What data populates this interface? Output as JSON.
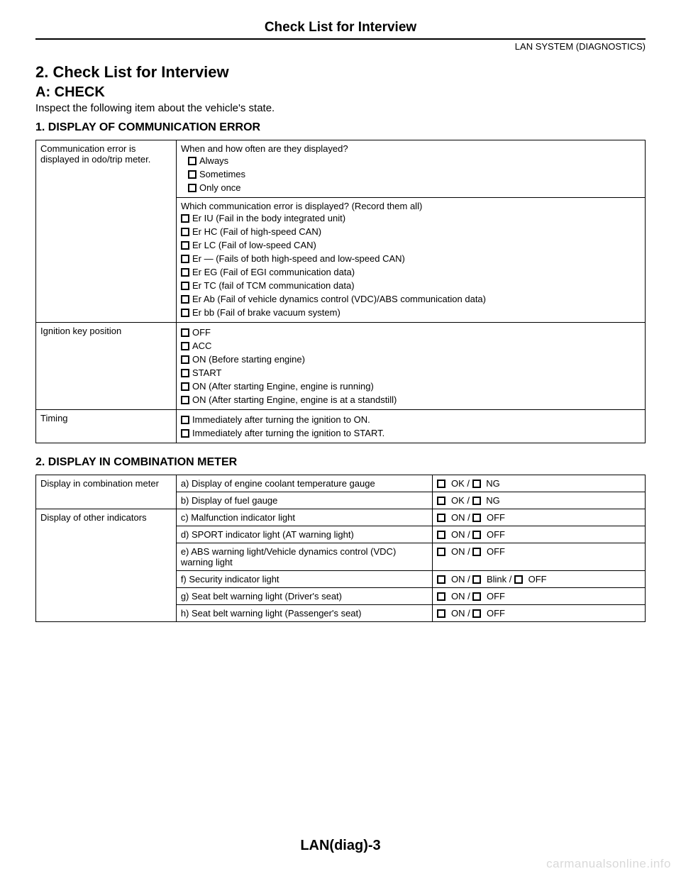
{
  "header": {
    "title": "Check List for Interview",
    "system": "LAN SYSTEM (DIAGNOSTICS)"
  },
  "section": {
    "num_title": "2.  Check List for Interview",
    "sub_a": "A:  CHECK",
    "intro": "Inspect the following item about the vehicle's state."
  },
  "part1": {
    "heading": "1.  DISPLAY OF COMMUNICATION ERROR",
    "row1_label": "Communication error is displayed in odo/trip meter.",
    "q1": "When and how often are they displayed?",
    "q1_opts": [
      "Always",
      "Sometimes",
      "Only once"
    ],
    "q2": "Which communication error is displayed? (Record them all)",
    "q2_opts": [
      "Er IU (Fail in the body integrated unit)",
      "Er HC (Fail of high-speed CAN)",
      "Er LC (Fail of low-speed CAN)",
      "Er — (Fails of both high-speed and low-speed CAN)",
      "Er EG (Fail of EGI communication data)",
      "Er TC (fail of TCM communication data)",
      "Er Ab (Fail of vehicle dynamics control (VDC)/ABS communication data)",
      "Er bb (Fail of brake vacuum system)"
    ],
    "row2_label": "Ignition key position",
    "row2_opts": [
      "OFF",
      "ACC",
      "ON (Before starting engine)",
      "START",
      "ON (After starting Engine, engine is running)",
      "ON (After starting Engine, engine is at a standstill)"
    ],
    "row3_label": "Timing",
    "row3_opts": [
      "Immediately after turning the ignition to ON.",
      "Immediately after turning the ignition to START."
    ]
  },
  "part2": {
    "heading": "2.  DISPLAY IN COMBINATION METER",
    "group1_label": "Display in combination meter",
    "group2_label": "Display of other indicators",
    "rows": [
      {
        "desc": "a) Display of engine coolant temperature gauge",
        "opts": [
          "OK",
          "NG"
        ]
      },
      {
        "desc": "b) Display of fuel gauge",
        "opts": [
          "OK",
          "NG"
        ]
      },
      {
        "desc": "c) Malfunction indicator light",
        "opts": [
          "ON",
          "OFF"
        ]
      },
      {
        "desc": "d) SPORT indicator light (AT warning light)",
        "opts": [
          "ON",
          "OFF"
        ]
      },
      {
        "desc": "e) ABS warning light/Vehicle dynamics control (VDC) warning light",
        "opts": [
          "ON",
          "OFF"
        ]
      },
      {
        "desc": "f) Security indicator light",
        "opts": [
          "ON",
          "Blink",
          "OFF"
        ]
      },
      {
        "desc": "g) Seat belt warning light (Driver's seat)",
        "opts": [
          "ON",
          "OFF"
        ]
      },
      {
        "desc": "h) Seat belt warning light (Passenger's seat)",
        "opts": [
          "ON",
          "OFF"
        ]
      }
    ]
  },
  "footer": {
    "page_id": "LAN(diag)-3",
    "watermark": "carmanualsonline.info"
  }
}
